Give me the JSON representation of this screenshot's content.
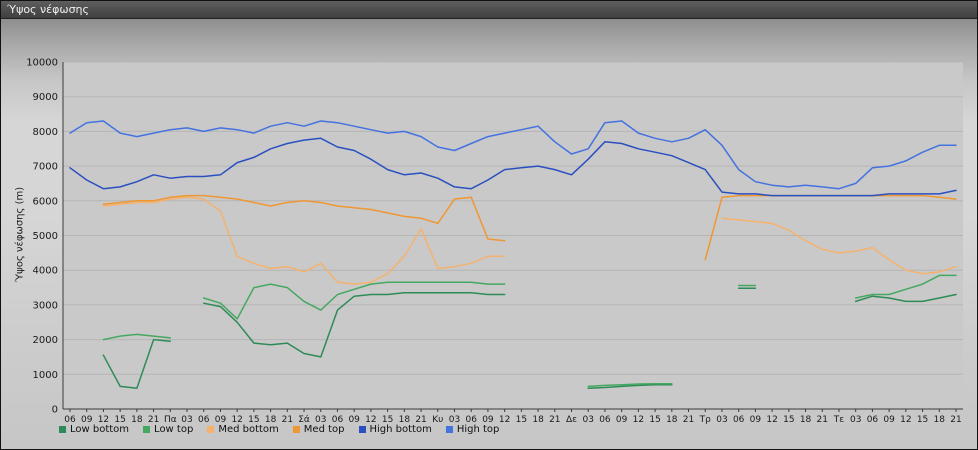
{
  "window": {
    "title": "Ύψος νέφωσης"
  },
  "chart_data": {
    "type": "line",
    "title": "Ύψος νέφωσης",
    "xlabel": "",
    "ylabel": "Ύψος νέφωσης (m)",
    "ylim": [
      0,
      10000
    ],
    "ytick_step": 1000,
    "grid": true,
    "legend_position": "bottom",
    "plot_bg": "#c9c9c9",
    "grid_color": "#b5b5b5",
    "axis_color": "#3a3a3a",
    "tick_text_color": "#1a1a1a",
    "x_labels": [
      "06",
      "09",
      "12",
      "15",
      "18",
      "21",
      "Πα",
      "03",
      "06",
      "09",
      "12",
      "15",
      "18",
      "21",
      "Σά",
      "03",
      "06",
      "09",
      "12",
      "15",
      "18",
      "21",
      "Κυ",
      "03",
      "06",
      "09",
      "12",
      "15",
      "18",
      "21",
      "Δε",
      "03",
      "06",
      "09",
      "12",
      "15",
      "18",
      "21",
      "Τρ",
      "03",
      "06",
      "09",
      "12",
      "15",
      "18",
      "21",
      "Τε",
      "03",
      "06",
      "09",
      "12",
      "15",
      "18",
      "21"
    ],
    "series": [
      {
        "name": "Low bottom",
        "color": "#2e8b57",
        "values": [
          null,
          null,
          1550,
          650,
          600,
          2000,
          1950,
          null,
          3050,
          2950,
          2500,
          1900,
          1850,
          1900,
          1600,
          1500,
          2850,
          3250,
          3300,
          3300,
          3350,
          3350,
          3350,
          3350,
          3350,
          3300,
          3300,
          null,
          null,
          null,
          null,
          600,
          620,
          650,
          680,
          700,
          700,
          null,
          null,
          null,
          3480,
          3480,
          null,
          null,
          null,
          null,
          null,
          3100,
          3250,
          3200,
          3100,
          3100,
          3200,
          3300
        ]
      },
      {
        "name": "Low top",
        "color": "#45a860",
        "values": [
          null,
          null,
          2000,
          2100,
          2150,
          2100,
          2050,
          null,
          3200,
          3050,
          2600,
          3500,
          3600,
          3500,
          3100,
          2850,
          3300,
          3450,
          3600,
          3650,
          3650,
          3650,
          3650,
          3650,
          3650,
          3600,
          3600,
          null,
          null,
          null,
          null,
          650,
          680,
          700,
          720,
          730,
          730,
          null,
          null,
          null,
          3560,
          3560,
          null,
          null,
          null,
          null,
          null,
          3200,
          3300,
          3300,
          3450,
          3600,
          3850,
          3850
        ]
      },
      {
        "name": "Med bottom",
        "color": "#f4b26e",
        "values": [
          null,
          null,
          5850,
          5900,
          5950,
          5950,
          6050,
          6100,
          6050,
          5700,
          4400,
          4200,
          4050,
          4100,
          3950,
          4200,
          3650,
          3600,
          3650,
          3900,
          4400,
          5200,
          4050,
          4100,
          4200,
          4400,
          4400,
          null,
          null,
          null,
          null,
          null,
          null,
          null,
          null,
          null,
          null,
          null,
          null,
          5500,
          5450,
          5400,
          5350,
          5150,
          4850,
          4600,
          4500,
          4550,
          4650,
          4300,
          4000,
          3900,
          3950,
          4100
        ]
      },
      {
        "name": "Med top",
        "color": "#ef9733",
        "values": [
          null,
          null,
          5900,
          5950,
          6000,
          6000,
          6100,
          6150,
          6150,
          6100,
          6050,
          5950,
          5850,
          5950,
          6000,
          5950,
          5850,
          5800,
          5750,
          5650,
          5550,
          5500,
          5350,
          6050,
          6100,
          4900,
          4850,
          null,
          null,
          null,
          null,
          null,
          null,
          null,
          null,
          null,
          null,
          null,
          4300,
          6100,
          6150,
          6150,
          6150,
          6150,
          6150,
          6150,
          6150,
          6150,
          6150,
          6150,
          6150,
          6150,
          6100,
          6050
        ]
      },
      {
        "name": "High bottom",
        "color": "#2a50c0",
        "values": [
          6950,
          6600,
          6350,
          6400,
          6550,
          6750,
          6650,
          6700,
          6700,
          6750,
          7100,
          7250,
          7500,
          7650,
          7750,
          7800,
          7550,
          7450,
          7200,
          6900,
          6750,
          6800,
          6650,
          6400,
          6350,
          6600,
          6900,
          6950,
          7000,
          6900,
          6750,
          7200,
          7700,
          7650,
          7500,
          7400,
          7300,
          7100,
          6900,
          6250,
          6200,
          6200,
          6150,
          6150,
          6150,
          6150,
          6150,
          6150,
          6150,
          6200,
          6200,
          6200,
          6200,
          6300
        ]
      },
      {
        "name": "High top",
        "color": "#4472e0",
        "values": [
          7950,
          8250,
          8300,
          7950,
          7850,
          7950,
          8050,
          8100,
          8000,
          8100,
          8050,
          7950,
          8150,
          8250,
          8150,
          8300,
          8250,
          8150,
          8050,
          7950,
          8000,
          7850,
          7550,
          7450,
          7650,
          7850,
          7950,
          8050,
          8150,
          7700,
          7350,
          7500,
          8250,
          8300,
          7950,
          7800,
          7700,
          7800,
          8050,
          7600,
          6900,
          6550,
          6450,
          6400,
          6450,
          6400,
          6350,
          6500,
          6950,
          7000,
          7150,
          7400,
          7600,
          7600
        ]
      }
    ]
  }
}
